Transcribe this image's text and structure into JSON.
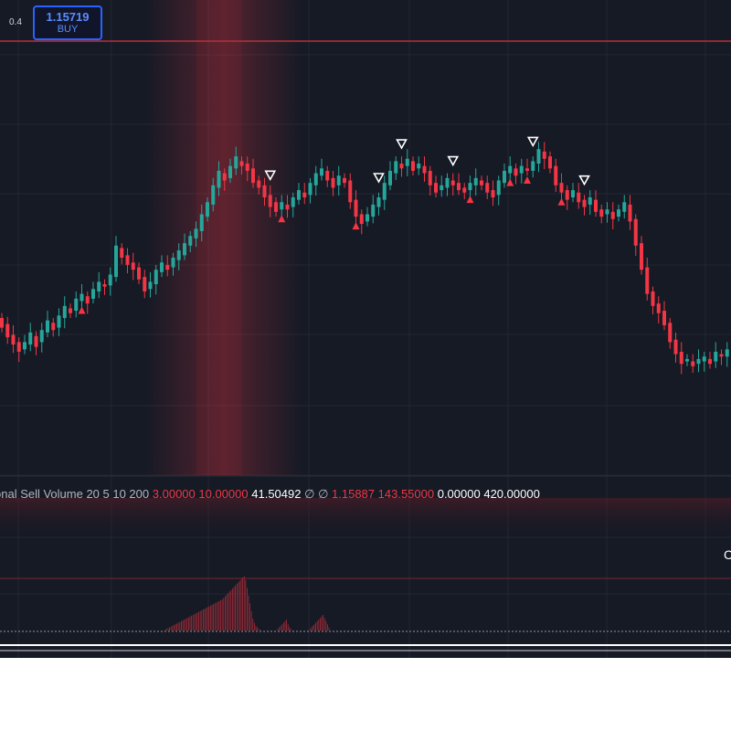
{
  "header": {
    "scale_label": "0.4",
    "order_price": "1.15719",
    "order_side": "BUY"
  },
  "indicator": {
    "title": "onal Sell Volume 20 5 10 200",
    "params_red": [
      "3.00000",
      "10.00000"
    ],
    "value_white_1": "41.50492",
    "na_symbols": [
      "∅",
      "∅"
    ],
    "values_red": [
      "1.15887",
      "143.55000"
    ],
    "values_white": [
      "0.00000",
      "420.00000"
    ],
    "edge_label": "C"
  },
  "colors": {
    "background": "#161a25",
    "up": "#26a69a",
    "down": "#f23645",
    "grid": "#232733",
    "accent": "#2962ff"
  },
  "chart_data": {
    "type": "candlestick",
    "candles": [
      [
        100,
        92
      ],
      [
        95,
        84
      ],
      [
        86,
        78
      ],
      [
        80,
        72
      ],
      [
        74,
        80
      ],
      [
        78,
        88
      ],
      [
        85,
        76
      ],
      [
        80,
        90
      ],
      [
        88,
        98
      ],
      [
        96,
        90
      ],
      [
        92,
        102
      ],
      [
        100,
        110
      ],
      [
        108,
        104
      ],
      [
        106,
        116
      ],
      [
        114,
        120
      ],
      [
        118,
        112
      ],
      [
        116,
        124
      ],
      [
        122,
        130
      ],
      [
        128,
        126
      ],
      [
        127,
        136
      ],
      [
        134,
        160
      ],
      [
        158,
        150
      ],
      [
        152,
        144
      ],
      [
        146,
        140
      ],
      [
        142,
        132
      ],
      [
        134,
        122
      ],
      [
        124,
        130
      ],
      [
        128,
        140
      ],
      [
        138,
        146
      ],
      [
        144,
        140
      ],
      [
        142,
        150
      ],
      [
        148,
        156
      ],
      [
        152,
        162
      ],
      [
        160,
        168
      ],
      [
        166,
        174
      ],
      [
        172,
        186
      ],
      [
        184,
        196
      ],
      [
        194,
        210
      ],
      [
        208,
        222
      ],
      [
        220,
        214
      ],
      [
        216,
        226
      ],
      [
        224,
        234
      ],
      [
        230,
        226
      ],
      [
        228,
        222
      ],
      [
        224,
        212
      ],
      [
        214,
        208
      ],
      [
        210,
        200
      ],
      [
        202,
        192
      ],
      [
        196,
        188
      ],
      [
        190,
        196
      ],
      [
        194,
        190
      ],
      [
        192,
        200
      ],
      [
        198,
        206
      ],
      [
        204,
        200
      ],
      [
        202,
        212
      ],
      [
        210,
        220
      ],
      [
        218,
        224
      ],
      [
        222,
        214
      ],
      [
        216,
        208
      ],
      [
        210,
        218
      ],
      [
        216,
        212
      ],
      [
        214,
        196
      ],
      [
        198,
        184
      ],
      [
        186,
        178
      ],
      [
        180,
        186
      ],
      [
        184,
        194
      ],
      [
        192,
        200
      ],
      [
        198,
        212
      ],
      [
        210,
        222
      ],
      [
        220,
        230
      ],
      [
        228,
        224
      ],
      [
        226,
        232
      ],
      [
        230,
        222
      ],
      [
        224,
        228
      ],
      [
        226,
        220
      ],
      [
        222,
        210
      ],
      [
        212,
        204
      ],
      [
        206,
        210
      ],
      [
        208,
        216
      ],
      [
        214,
        210
      ],
      [
        212,
        206
      ],
      [
        208,
        204
      ],
      [
        206,
        212
      ],
      [
        210,
        216
      ],
      [
        214,
        210
      ],
      [
        212,
        204
      ],
      [
        206,
        200
      ],
      [
        202,
        214
      ],
      [
        212,
        222
      ],
      [
        220,
        226
      ],
      [
        224,
        218
      ],
      [
        220,
        226
      ],
      [
        224,
        222
      ],
      [
        222,
        230
      ],
      [
        228,
        240
      ],
      [
        238,
        232
      ],
      [
        234,
        224
      ],
      [
        226,
        210
      ],
      [
        212,
        204
      ],
      [
        206,
        198
      ],
      [
        200,
        206
      ],
      [
        204,
        196
      ],
      [
        198,
        192
      ],
      [
        194,
        200
      ],
      [
        198,
        188
      ],
      [
        190,
        184
      ],
      [
        186,
        190
      ],
      [
        188,
        182
      ],
      [
        184,
        190
      ],
      [
        188,
        196
      ],
      [
        194,
        180
      ],
      [
        182,
        160
      ],
      [
        162,
        140
      ],
      [
        142,
        120
      ],
      [
        122,
        110
      ],
      [
        112,
        104
      ],
      [
        106,
        94
      ],
      [
        96,
        80
      ],
      [
        82,
        70
      ],
      [
        72,
        62
      ],
      [
        64,
        66
      ],
      [
        64,
        60
      ],
      [
        62,
        66
      ],
      [
        64,
        68
      ],
      [
        66,
        62
      ],
      [
        64,
        72
      ],
      [
        70,
        68
      ],
      [
        68,
        74
      ],
      [
        72,
        66
      ],
      [
        68,
        62
      ],
      [
        64,
        74
      ]
    ],
    "sell_markers_at_candle": [
      47,
      66,
      70,
      79,
      93,
      102
    ],
    "buy_markers_at_candle": [
      14,
      49,
      62,
      82,
      89,
      92,
      98
    ],
    "volume_histogram": [
      0,
      0,
      0,
      0,
      0,
      0,
      0,
      0,
      0,
      0,
      0,
      0,
      0,
      0,
      0,
      0,
      0,
      0,
      0,
      0,
      0,
      0,
      0,
      0,
      0,
      0,
      0,
      0,
      0,
      0,
      0,
      0,
      0,
      1,
      2,
      3,
      4,
      5,
      6,
      7,
      8,
      9,
      10,
      11,
      12,
      13,
      14,
      15,
      16,
      17,
      18,
      19,
      20,
      21,
      22,
      23,
      24,
      25,
      26,
      27,
      28,
      29,
      30,
      31,
      32,
      33,
      34,
      35,
      36,
      37,
      38,
      39,
      40,
      42,
      44,
      46,
      48,
      50,
      52,
      54,
      56,
      58,
      60,
      62,
      64,
      66,
      68,
      70,
      65,
      55,
      45,
      35,
      25,
      15,
      10,
      6,
      4,
      2,
      1,
      0,
      0,
      0,
      0,
      0,
      0,
      0,
      0,
      0,
      0,
      0,
      2,
      4,
      6,
      8,
      10,
      12,
      14,
      8,
      4,
      2,
      0,
      0,
      0,
      0,
      0,
      0,
      0,
      0,
      0,
      0,
      0,
      0,
      2,
      4,
      6,
      8,
      10,
      12,
      14,
      16,
      18,
      20,
      16,
      12,
      8,
      4,
      0,
      0,
      0,
      0,
      0,
      0,
      0,
      0,
      0,
      0,
      0,
      0,
      0,
      0
    ]
  }
}
